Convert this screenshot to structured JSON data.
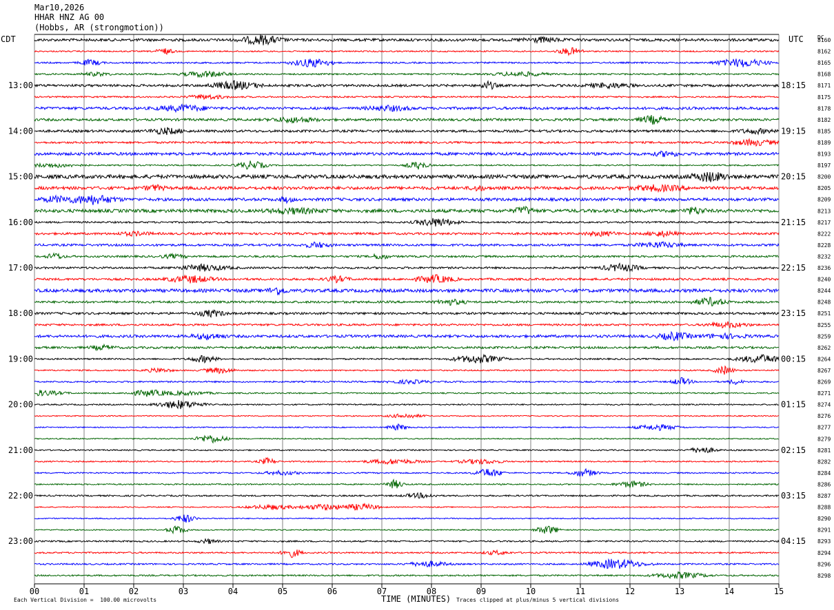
{
  "header": {
    "date": "Mar10,2026",
    "station": "HHAR HNZ AG 00",
    "location": "(Hobbs, AR (strongmotion))"
  },
  "left_zone_label": "CDT",
  "right_zone_label": "UTC",
  "dc_label": "DC",
  "footer": {
    "scale_note": "Each Vertical Division =  100.00 microvolts",
    "xlabel": "TIME (MINUTES)",
    "clip_note": "Traces clipped at plus/minus 5 vertical divisions"
  },
  "colors": {
    "trace_cycle": [
      "#000000",
      "#ff0000",
      "#0000ff",
      "#006400"
    ],
    "grid": "#808080"
  },
  "chart_data": {
    "type": "line",
    "title": "HHAR HNZ AG 00",
    "xlabel": "TIME (MINUTES)",
    "xlim": [
      0,
      15
    ],
    "x_ticks": [
      "00",
      "01",
      "02",
      "03",
      "04",
      "05",
      "06",
      "07",
      "08",
      "09",
      "10",
      "11",
      "12",
      "13",
      "14",
      "15"
    ],
    "traces_per_hour": 4,
    "trace_count": 48,
    "left_hour_labels": [
      "13:00",
      "14:00",
      "15:00",
      "16:00",
      "17:00",
      "18:00",
      "19:00",
      "20:00",
      "21:00",
      "22:00",
      "23:00"
    ],
    "right_hour_labels": [
      "18:15",
      "19:15",
      "20:15",
      "21:15",
      "22:15",
      "23:15",
      "00:15",
      "01:15",
      "02:15",
      "03:15",
      "04:15"
    ],
    "first_labeled_trace_index": 4,
    "dc_offsets": [
      "8160",
      "8162",
      "8165",
      "8168",
      "8171",
      "8175",
      "8178",
      "8182",
      "8185",
      "8189",
      "8193",
      "8197",
      "8200",
      "8205",
      "8209",
      "8213",
      "8217",
      "8222",
      "8228",
      "8232",
      "8236",
      "8240",
      "8244",
      "8248",
      "8251",
      "8255",
      "8259",
      "8262",
      "8264",
      "8267",
      "8269",
      "8271",
      "8274",
      "8276",
      "8277",
      "8279",
      "8281",
      "8282",
      "8284",
      "8286",
      "8287",
      "8288",
      "8290",
      "8291",
      "8293",
      "8294",
      "8296",
      "8298"
    ],
    "noise_amplitude_divisions": [
      1.2,
      0.6,
      0.7,
      0.7,
      1.1,
      0.7,
      1.2,
      1.1,
      1.1,
      0.9,
      1.3,
      0.6,
      1.7,
      1.4,
      1.3,
      1.5,
      0.8,
      1.0,
      1.0,
      0.9,
      0.9,
      1.0,
      1.5,
      1.0,
      1.0,
      0.9,
      1.2,
      1.0,
      0.7,
      0.6,
      0.7,
      0.6,
      0.6,
      0.5,
      0.5,
      0.5,
      0.6,
      0.6,
      0.6,
      0.6,
      0.7,
      0.5,
      0.5,
      0.5,
      0.7,
      0.7,
      0.7,
      0.7
    ]
  }
}
